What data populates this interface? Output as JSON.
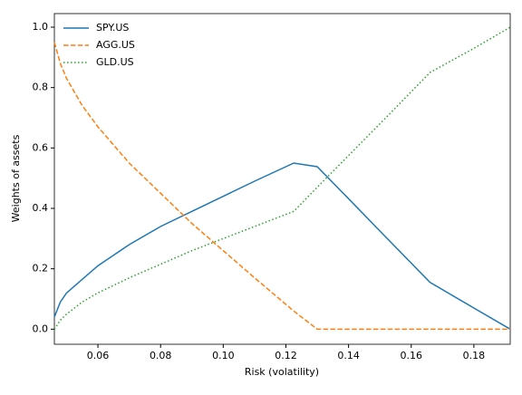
{
  "chart_data": {
    "type": "line",
    "xlabel": "Risk (volatility)",
    "ylabel": "Weights of assets",
    "x": [
      0.0461,
      0.048,
      0.05,
      0.055,
      0.06,
      0.07,
      0.08,
      0.09,
      0.1,
      0.11,
      0.1225,
      0.13,
      0.14,
      0.15,
      0.166,
      0.18,
      0.1916
    ],
    "series": [
      {
        "name": "SPY.US",
        "color": "#1f77b4",
        "style": "solid",
        "values": [
          0.04,
          0.09,
          0.12,
          0.165,
          0.21,
          0.28,
          0.34,
          0.39,
          0.44,
          0.49,
          0.55,
          0.538,
          0.432,
          0.325,
          0.155,
          0.07,
          0
        ]
      },
      {
        "name": "AGG.US",
        "color": "#ff7f0e",
        "style": "dashed",
        "values": [
          0.95,
          0.88,
          0.83,
          0.74,
          0.67,
          0.55,
          0.45,
          0.35,
          0.26,
          0.17,
          0.06,
          0,
          0,
          0,
          0,
          0,
          0
        ]
      },
      {
        "name": "GLD.US",
        "color": "#2ca02c",
        "style": "dotted",
        "values": [
          0,
          0.03,
          0.05,
          0.09,
          0.12,
          0.17,
          0.215,
          0.26,
          0.3,
          0.34,
          0.39,
          0.47,
          0.575,
          0.68,
          0.85,
          0.93,
          1.0
        ]
      }
    ],
    "xlim": [
      0.0461,
      0.1916
    ],
    "ylim": [
      -0.05,
      1.045
    ],
    "xticks": [
      {
        "value": 0.06,
        "label": "0.06"
      },
      {
        "value": 0.08,
        "label": "0.08"
      },
      {
        "value": 0.1,
        "label": "0.10"
      },
      {
        "value": 0.12,
        "label": "0.12"
      },
      {
        "value": 0.14,
        "label": "0.14"
      },
      {
        "value": 0.16,
        "label": "0.16"
      },
      {
        "value": 0.18,
        "label": "0.18"
      }
    ],
    "yticks": [
      {
        "value": 0,
        "label": "0.0"
      },
      0.2,
      0.4,
      0.6,
      0.8,
      {
        "value": 1,
        "label": "1.0"
      }
    ],
    "legend": "upper-left",
    "grid": false
  }
}
